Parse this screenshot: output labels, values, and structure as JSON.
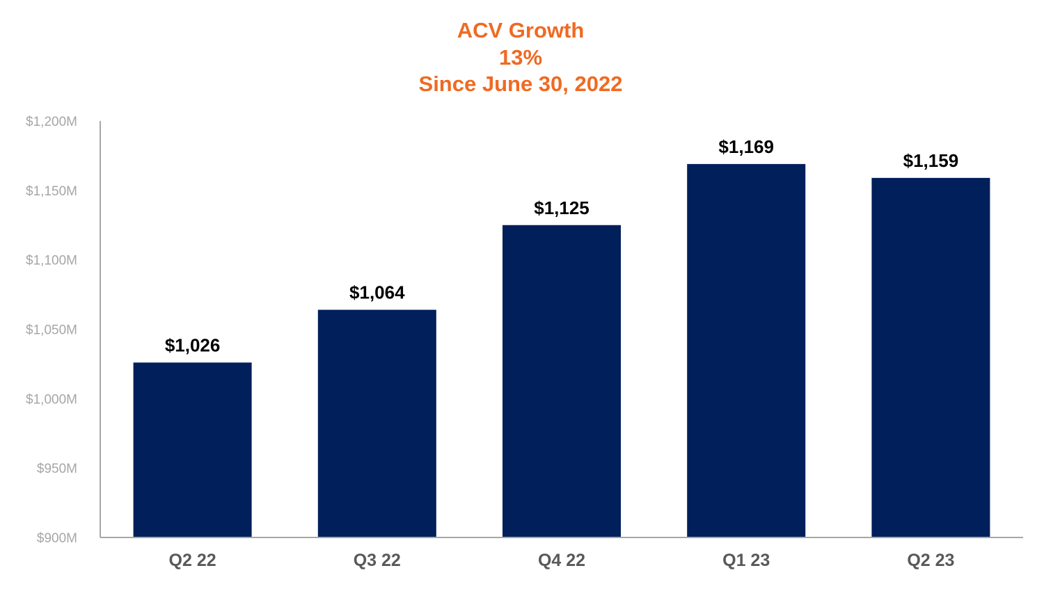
{
  "chart_data": {
    "type": "bar",
    "title_lines": [
      "ACV Growth",
      "13%",
      "Since June 30, 2022"
    ],
    "categories": [
      "Q2 22",
      "Q3 22",
      "Q4 22",
      "Q1 23",
      "Q2 23"
    ],
    "values": [
      1026,
      1064,
      1125,
      1169,
      1159
    ],
    "data_labels": [
      "$1,026",
      "$1,064",
      "$1,125",
      "$1,169",
      "$1,159"
    ],
    "ylim": [
      900,
      1200
    ],
    "yticks": [
      900,
      950,
      1000,
      1050,
      1100,
      1150,
      1200
    ],
    "ytick_labels": [
      "$900M",
      "$950M",
      "$1,000M",
      "$1,050M",
      "$1,100M",
      "$1,150M",
      "$1,200M"
    ],
    "xlabel": "",
    "ylabel": "",
    "grid": false,
    "legend": "none"
  },
  "colors": {
    "title": "#ef6a22",
    "bar": "#001f5b",
    "axis": "#a6a6a6"
  }
}
